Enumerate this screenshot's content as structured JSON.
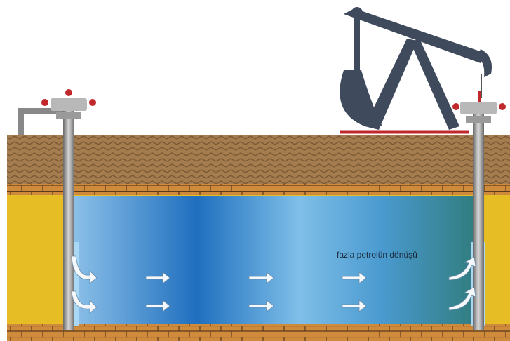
{
  "annotation": "fazla petrolün dönüşü"
}
